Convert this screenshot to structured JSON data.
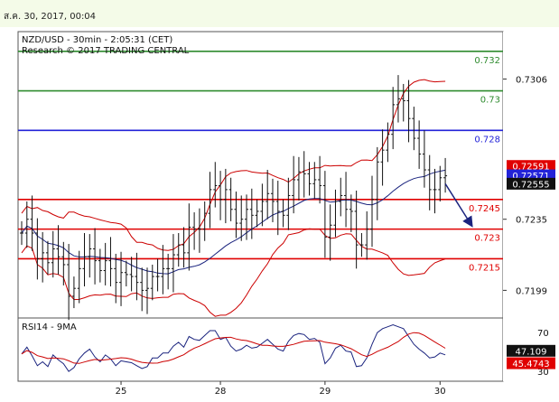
{
  "header": {
    "timestamp": "ส.ค. 30, 2017, 00:04"
  },
  "chart_data": {
    "type": "candlestick",
    "title": "NZD/USD - 30min - 2:05:31 (CET)",
    "subtitle": "Research © 2017 TRADING CENTRAL",
    "price_axis": {
      "min": 0.7185,
      "max": 0.733,
      "ticks": [
        "0.7306",
        "0.7235",
        "0.7199"
      ]
    },
    "x_ticks": [
      {
        "label": "25",
        "bar": 19
      },
      {
        "label": "28",
        "bar": 38
      },
      {
        "label": "29",
        "bar": 58
      },
      {
        "label": "30",
        "bar": 80
      }
    ],
    "levels": [
      {
        "value": 0.732,
        "label": "0.732",
        "color": "#2e8b2e"
      },
      {
        "value": 0.73,
        "label": "0.73",
        "color": "#2e8b2e"
      },
      {
        "value": 0.728,
        "label": "0.728",
        "color": "#2323d8"
      },
      {
        "value": 0.7245,
        "label": "0.7245",
        "color": "#e00000"
      },
      {
        "value": 0.723,
        "label": "0.723",
        "color": "#e00000"
      },
      {
        "value": 0.7215,
        "label": "0.7215",
        "color": "#e00000"
      }
    ],
    "price_tags": [
      {
        "value": 0.7259,
        "label": "0.72591",
        "bg": "#e00000",
        "fg": "#ffffff"
      },
      {
        "value": 0.7257,
        "label": "0.72571",
        "bg": "#2323d8",
        "fg": "#ffffff"
      },
      {
        "value": 0.72555,
        "label": "0.72555",
        "bg": "#111111",
        "fg": "#ffffff"
      }
    ],
    "closes": [
      0.7228,
      0.7235,
      0.7228,
      0.7215,
      0.7218,
      0.7213,
      0.722,
      0.7216,
      0.7212,
      0.7196,
      0.72,
      0.721,
      0.7216,
      0.722,
      0.7214,
      0.7209,
      0.7214,
      0.721,
      0.7203,
      0.7208,
      0.7207,
      0.7206,
      0.7203,
      0.7199,
      0.72,
      0.7206,
      0.7206,
      0.721,
      0.721,
      0.7217,
      0.7222,
      0.7218,
      0.7231,
      0.723,
      0.723,
      0.7238,
      0.725,
      0.7252,
      0.7245,
      0.725,
      0.724,
      0.7233,
      0.7235,
      0.724,
      0.7237,
      0.7239,
      0.7244,
      0.7248,
      0.7244,
      0.7239,
      0.7237,
      0.7247,
      0.7255,
      0.7259,
      0.7258,
      0.7253,
      0.7255,
      0.7252,
      0.7226,
      0.7232,
      0.7244,
      0.7247,
      0.724,
      0.7239,
      0.7222,
      0.7222,
      0.723,
      0.7245,
      0.7264,
      0.727,
      0.7278,
      0.7293,
      0.7296,
      0.7295,
      0.7286,
      0.7276,
      0.7268,
      0.726,
      0.725,
      0.725,
      0.7256,
      0.7257
    ],
    "rsi": {
      "label": "RSI14 - 9MA",
      "ticks": [
        "70",
        "30"
      ],
      "tags": [
        {
          "value": 47.109,
          "label": "47.109",
          "bg": "#111111",
          "fg": "#ffffff"
        },
        {
          "value": 45.4743,
          "label": "45.4743",
          "bg": "#e00000",
          "fg": "#ffffff"
        }
      ],
      "values": [
        48,
        55,
        46,
        36,
        40,
        35,
        47,
        42,
        38,
        30,
        34,
        43,
        49,
        53,
        45,
        40,
        47,
        43,
        36,
        41,
        40,
        39,
        36,
        33,
        35,
        44,
        44,
        49,
        49,
        56,
        60,
        55,
        66,
        63,
        62,
        67,
        72,
        72,
        63,
        65,
        56,
        51,
        53,
        57,
        54,
        55,
        59,
        63,
        58,
        53,
        51,
        61,
        67,
        69,
        68,
        63,
        64,
        60,
        38,
        44,
        54,
        57,
        51,
        50,
        35,
        36,
        44,
        58,
        70,
        74,
        76,
        78,
        76,
        74,
        66,
        58,
        53,
        49,
        44,
        45,
        49,
        47.1
      ]
    },
    "forecast_arrow": {
      "from_bar": 81,
      "from_value": 0.7253,
      "to_bar": 86,
      "to_value": 0.7232,
      "color": "#1a237e"
    },
    "colors": {
      "bars": "#111111",
      "bollinger": "#cc0000",
      "ma": "#1a237e",
      "rsi": "#1a237e",
      "rsi_ma": "#cc0000"
    }
  }
}
